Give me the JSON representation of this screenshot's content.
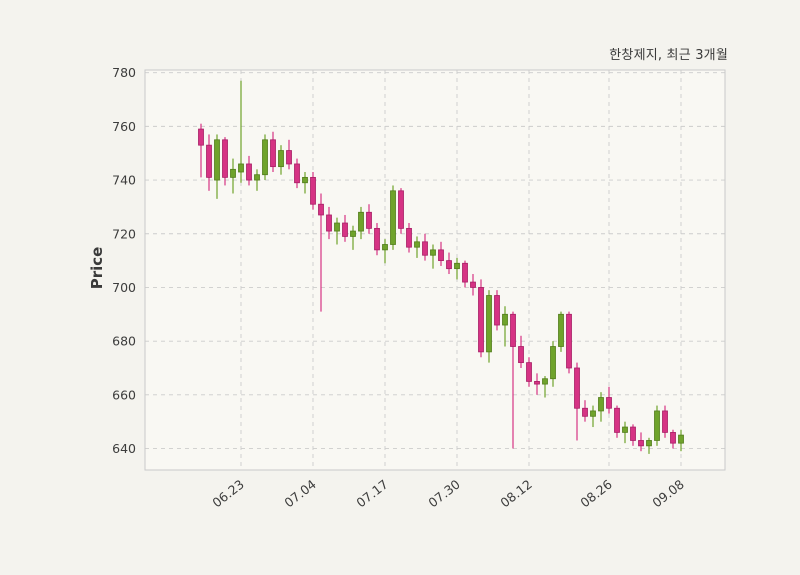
{
  "header": {
    "title": "한창제지, 최근 3개월"
  },
  "chart_data": {
    "type": "candlestick",
    "title": "한창제지, 최근 3개월",
    "ylabel": "Price",
    "ylim": [
      632,
      781
    ],
    "xlim": [
      -7,
      65.5
    ],
    "yticks": [
      640,
      660,
      680,
      700,
      720,
      740,
      760,
      780
    ],
    "xtick_labels": [
      "06.23",
      "07.04",
      "07.17",
      "07.30",
      "08.12",
      "08.26",
      "09.08"
    ],
    "xtick_indices": [
      5,
      14,
      23,
      32,
      41,
      51,
      60
    ],
    "grid": "dashed",
    "legend": "none",
    "colors": {
      "up_fill": "#6fa32b",
      "up_edge": "#537d1c",
      "down_fill": "#d63384",
      "down_edge": "#a81f66",
      "grid": "#cccccc",
      "spine": "#c9c9c9",
      "plot_bg": "#f9f8f3",
      "figure_bg": "#f4f3ee",
      "tick_text": "#3c3c3c"
    },
    "candles": {
      "columns": [
        "date",
        "open",
        "high",
        "low",
        "close"
      ],
      "rows": [
        [
          "06.16",
          759,
          761,
          741,
          753
        ],
        [
          "06.17",
          753,
          757,
          736,
          741
        ],
        [
          "06.18",
          740,
          757,
          733,
          755
        ],
        [
          "06.19",
          755,
          756,
          738,
          741
        ],
        [
          "06.20",
          741,
          748,
          735,
          744
        ],
        [
          "06.23",
          743,
          777,
          739,
          746
        ],
        [
          "06.24",
          746,
          749,
          738,
          740
        ],
        [
          "06.25",
          740,
          744,
          736,
          742
        ],
        [
          "06.26",
          742,
          757,
          740,
          755
        ],
        [
          "06.27",
          755,
          758,
          743,
          745
        ],
        [
          "06.30",
          745,
          753,
          742,
          751
        ],
        [
          "07.01",
          751,
          755,
          744,
          746
        ],
        [
          "07.02",
          746,
          748,
          737,
          739
        ],
        [
          "07.03",
          739,
          743,
          735,
          741
        ],
        [
          "07.04",
          741,
          743,
          729,
          731
        ],
        [
          "07.07",
          731,
          735,
          691,
          727
        ],
        [
          "07.08",
          727,
          730,
          718,
          721
        ],
        [
          "07.09",
          721,
          726,
          716,
          724
        ],
        [
          "07.10",
          724,
          727,
          717,
          719
        ],
        [
          "07.11",
          719,
          723,
          714,
          721
        ],
        [
          "07.14",
          721,
          730,
          718,
          728
        ],
        [
          "07.15",
          728,
          731,
          720,
          722
        ],
        [
          "07.16",
          722,
          724,
          712,
          714
        ],
        [
          "07.17",
          714,
          718,
          709,
          716
        ],
        [
          "07.18",
          716,
          738,
          714,
          736
        ],
        [
          "07.21",
          736,
          737,
          720,
          722
        ],
        [
          "07.22",
          722,
          724,
          713,
          715
        ],
        [
          "07.23",
          715,
          719,
          711,
          717
        ],
        [
          "07.24",
          717,
          720,
          710,
          712
        ],
        [
          "07.25",
          712,
          716,
          707,
          714
        ],
        [
          "07.28",
          714,
          717,
          708,
          710
        ],
        [
          "07.29",
          710,
          713,
          705,
          707
        ],
        [
          "07.30",
          707,
          711,
          703,
          709
        ],
        [
          "07.31",
          709,
          710,
          700,
          702
        ],
        [
          "08.01",
          702,
          705,
          697,
          700
        ],
        [
          "08.04",
          700,
          703,
          674,
          676
        ],
        [
          "08.05",
          676,
          699,
          672,
          697
        ],
        [
          "08.06",
          697,
          699,
          684,
          686
        ],
        [
          "08.07",
          686,
          693,
          678,
          690
        ],
        [
          "08.08",
          690,
          691,
          640,
          678
        ],
        [
          "08.11",
          678,
          682,
          670,
          672
        ],
        [
          "08.12",
          672,
          674,
          663,
          665
        ],
        [
          "08.13",
          665,
          668,
          660,
          664
        ],
        [
          "08.14",
          664,
          667,
          659,
          666
        ],
        [
          "08.15",
          666,
          680,
          663,
          678
        ],
        [
          "08.18",
          678,
          691,
          676,
          690
        ],
        [
          "08.19",
          690,
          691,
          668,
          670
        ],
        [
          "08.20",
          670,
          672,
          643,
          655
        ],
        [
          "08.21",
          655,
          658,
          650,
          652
        ],
        [
          "08.22",
          652,
          656,
          648,
          654
        ],
        [
          "08.25",
          654,
          661,
          650,
          659
        ],
        [
          "08.26",
          659,
          663,
          653,
          655
        ],
        [
          "08.27",
          655,
          656,
          644,
          646
        ],
        [
          "08.28",
          646,
          650,
          642,
          648
        ],
        [
          "08.29",
          648,
          649,
          641,
          643
        ],
        [
          "09.01",
          643,
          646,
          639,
          641
        ],
        [
          "09.02",
          641,
          644,
          638,
          643
        ],
        [
          "09.03",
          643,
          656,
          641,
          654
        ],
        [
          "09.04",
          654,
          656,
          644,
          646
        ],
        [
          "09.05",
          646,
          647,
          640,
          642
        ],
        [
          "09.08",
          642,
          647,
          639,
          645
        ]
      ]
    }
  }
}
